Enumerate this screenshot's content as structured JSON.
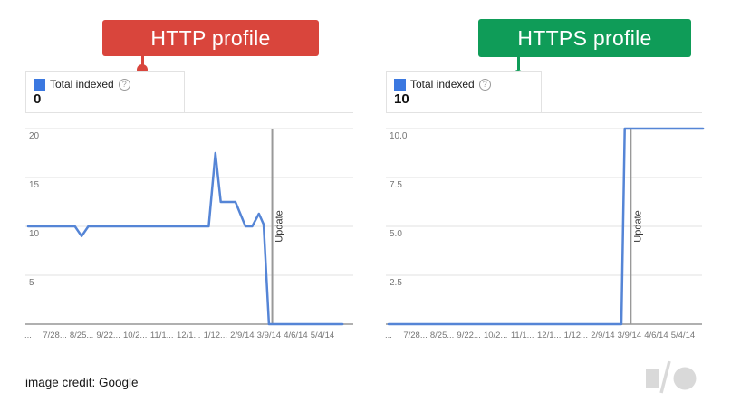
{
  "callouts": {
    "http": {
      "label": "HTTP profile",
      "color": "#d9453c"
    },
    "https": {
      "label": "HTTPS profile",
      "color": "#0f9c58"
    }
  },
  "panels": [
    {
      "legend_label": "Total indexed",
      "value": "0",
      "help_icon": "?"
    },
    {
      "legend_label": "Total indexed",
      "value": "10",
      "help_icon": "?"
    }
  ],
  "chart_data": [
    {
      "type": "line",
      "title": "Total indexed (HTTP profile)",
      "categories": [
        "...",
        "7/28...",
        "8/25...",
        "9/22...",
        "10/2...",
        "11/1...",
        "12/1...",
        "1/12...",
        "2/9/14",
        "3/9/14",
        "4/6/14",
        "5/4/14"
      ],
      "tick_interval_weeks": 4,
      "ylim": [
        0,
        20
      ],
      "ytick_values": [
        20,
        15,
        10,
        5
      ],
      "ytick_labels": [
        "20",
        "15",
        "10",
        "5"
      ],
      "grid": true,
      "legend_position": "top-left",
      "annotations": [
        {
          "label": "Update",
          "week": 36.5
        }
      ],
      "series": [
        {
          "name": "Total indexed",
          "points": [
            [
              0,
              10
            ],
            [
              7,
              10
            ],
            [
              8,
              9
            ],
            [
              9,
              10
            ],
            [
              27,
              10
            ],
            [
              28,
              17.5
            ],
            [
              28.8,
              12.5
            ],
            [
              31,
              12.5
            ],
            [
              32.5,
              10
            ],
            [
              33.5,
              10
            ],
            [
              34.5,
              11.3
            ],
            [
              35.2,
              10.2
            ],
            [
              36,
              0
            ],
            [
              47,
              0
            ]
          ]
        }
      ]
    },
    {
      "type": "line",
      "title": "Total indexed (HTTPS profile)",
      "categories": [
        "...",
        "7/28...",
        "8/25...",
        "9/22...",
        "10/2...",
        "11/1...",
        "12/1...",
        "1/12...",
        "2/9/14",
        "3/9/14",
        "4/6/14",
        "5/4/14"
      ],
      "tick_interval_weeks": 4,
      "ylim": [
        0,
        10
      ],
      "ytick_values": [
        10,
        7.5,
        5,
        2.5
      ],
      "ytick_labels": [
        "10.0",
        "7.5",
        "5.0",
        "2.5"
      ],
      "grid": true,
      "legend_position": "top-left",
      "annotations": [
        {
          "label": "Update",
          "week": 36.2
        }
      ],
      "series": [
        {
          "name": "Total indexed",
          "points": [
            [
              0,
              0
            ],
            [
              34.8,
              0
            ],
            [
              35.3,
              10
            ],
            [
              47,
              10
            ]
          ]
        }
      ]
    }
  ],
  "footer": {
    "credit": "image credit: Google"
  },
  "logo": {
    "name": "Google I/O"
  },
  "colors": {
    "red": "#d9453c",
    "green": "#0f9c58",
    "line_blue": "#5585d6",
    "legend_blue": "#3b78e0",
    "grid": "#e0e0e0",
    "axis": "#b0b0b0",
    "update_line": "#999999",
    "tick_text": "#757575",
    "logo_gray": "#d9d9d9"
  }
}
